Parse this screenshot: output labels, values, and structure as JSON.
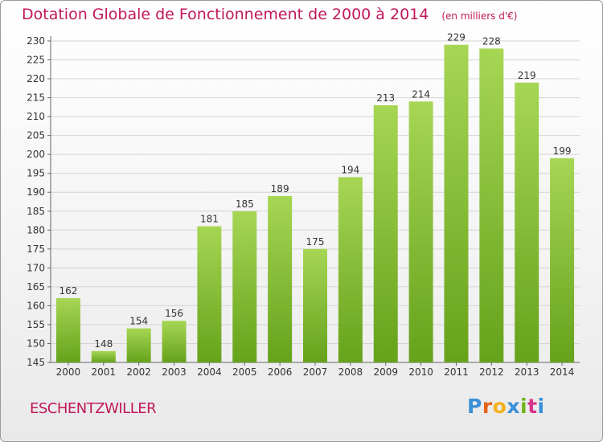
{
  "title": "Dotation Globale de Fonctionnement de 2000 à 2014",
  "unit": "(en milliers d'€)",
  "commune": "ESCHENTZWILLER",
  "logo": {
    "letters": [
      "P",
      "r",
      "o",
      "x",
      "i",
      "t",
      "i"
    ],
    "colors": [
      "#3a8fd8",
      "#e8621a",
      "#f2b01a",
      "#3a8fd8",
      "#6fb51a",
      "#d6338a",
      "#3a8fd8"
    ]
  },
  "colors": {
    "title": "#c0185a",
    "bar_light": "#a6d654",
    "bar_dark": "#66a21b",
    "grid": "#d4d4d4"
  },
  "chart_data": {
    "type": "bar",
    "categories": [
      "2000",
      "2001",
      "2002",
      "2003",
      "2004",
      "2005",
      "2006",
      "2007",
      "2008",
      "2009",
      "2010",
      "2011",
      "2012",
      "2013",
      "2014"
    ],
    "values": [
      162,
      148,
      154,
      156,
      181,
      185,
      189,
      175,
      194,
      213,
      214,
      229,
      228,
      219,
      199
    ],
    "ylim": [
      145,
      230
    ],
    "yticks": [
      145,
      150,
      155,
      160,
      165,
      170,
      175,
      180,
      185,
      190,
      195,
      200,
      205,
      210,
      215,
      220,
      225,
      230
    ],
    "grid": true,
    "data_labels": true
  }
}
